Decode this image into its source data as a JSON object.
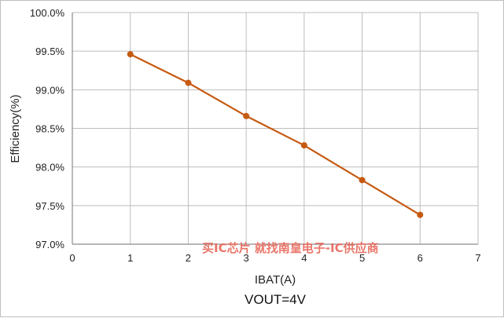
{
  "chart_data": {
    "type": "line",
    "title": "",
    "caption": "VOUT=4V",
    "xlabel": "IBAT(A)",
    "ylabel": "Efficiency(%)",
    "xlim": [
      0,
      7
    ],
    "ylim": [
      97.0,
      100.0
    ],
    "x_ticks": [
      0,
      1,
      2,
      3,
      4,
      5,
      6,
      7
    ],
    "x_tick_labels": [
      "0",
      "1",
      "2",
      "3",
      "4",
      "5",
      "6",
      "7"
    ],
    "y_ticks": [
      97.0,
      97.5,
      98.0,
      98.5,
      99.0,
      99.5,
      100.0
    ],
    "y_tick_labels": [
      "97.0%",
      "97.5%",
      "98.0%",
      "98.5%",
      "99.0%",
      "99.5%",
      "100.0%"
    ],
    "grid": true,
    "legend": "none",
    "series": [
      {
        "color": "#c55a11",
        "x": [
          1,
          2,
          3,
          4,
          5,
          6
        ],
        "y": [
          99.46,
          99.09,
          98.66,
          98.28,
          97.83,
          97.38
        ]
      }
    ],
    "watermark": "买IC芯片 就找南皇电子-IC供应商"
  }
}
